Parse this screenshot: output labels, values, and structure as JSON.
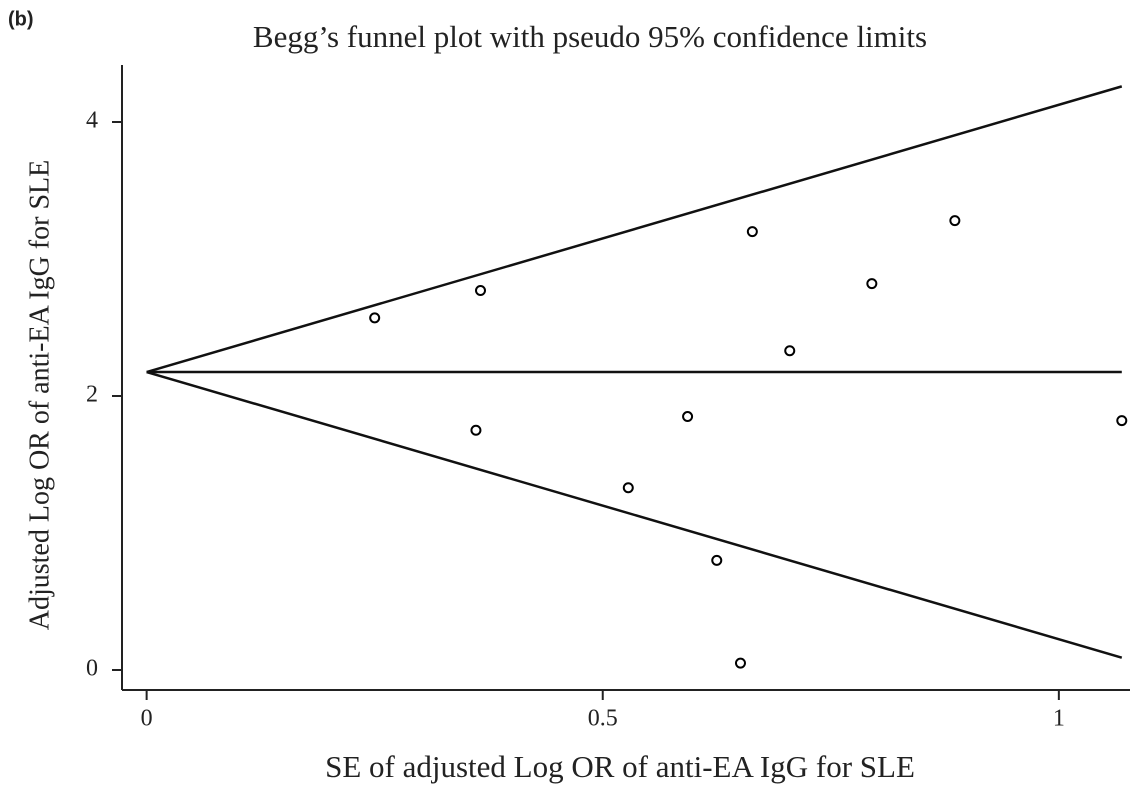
{
  "panel_label": "(b)",
  "chart_data": {
    "type": "scatter",
    "title": "Begg’s funnel plot with pseudo 95% confidence limits",
    "x_label": "SE of adjusted Log OR of anti-EA IgG for SLE",
    "y_label": "Adjusted Log OR of anti-EA IgG for SLE",
    "x": [
      0.25,
      0.366,
      0.361,
      0.528,
      0.593,
      0.625,
      0.651,
      0.664,
      0.705,
      0.795,
      0.886,
      1.069
    ],
    "values": [
      2.57,
      2.77,
      1.75,
      1.33,
      1.85,
      0.8,
      0.05,
      3.2,
      2.33,
      2.82,
      3.28,
      1.82
    ],
    "color": "#000000",
    "reference_lines": {
      "x": [
        0,
        1.069
      ],
      "center": [
        2.175,
        2.175
      ],
      "upper": [
        2.175,
        4.26
      ],
      "lower": [
        2.175,
        0.09
      ]
    },
    "xlim": [
      -0.027,
      1.078
    ],
    "xticks": [
      0,
      0.5,
      1
    ],
    "ylim": [
      -0.146,
      4.416
    ],
    "yticks": [
      0,
      2,
      4
    ]
  }
}
